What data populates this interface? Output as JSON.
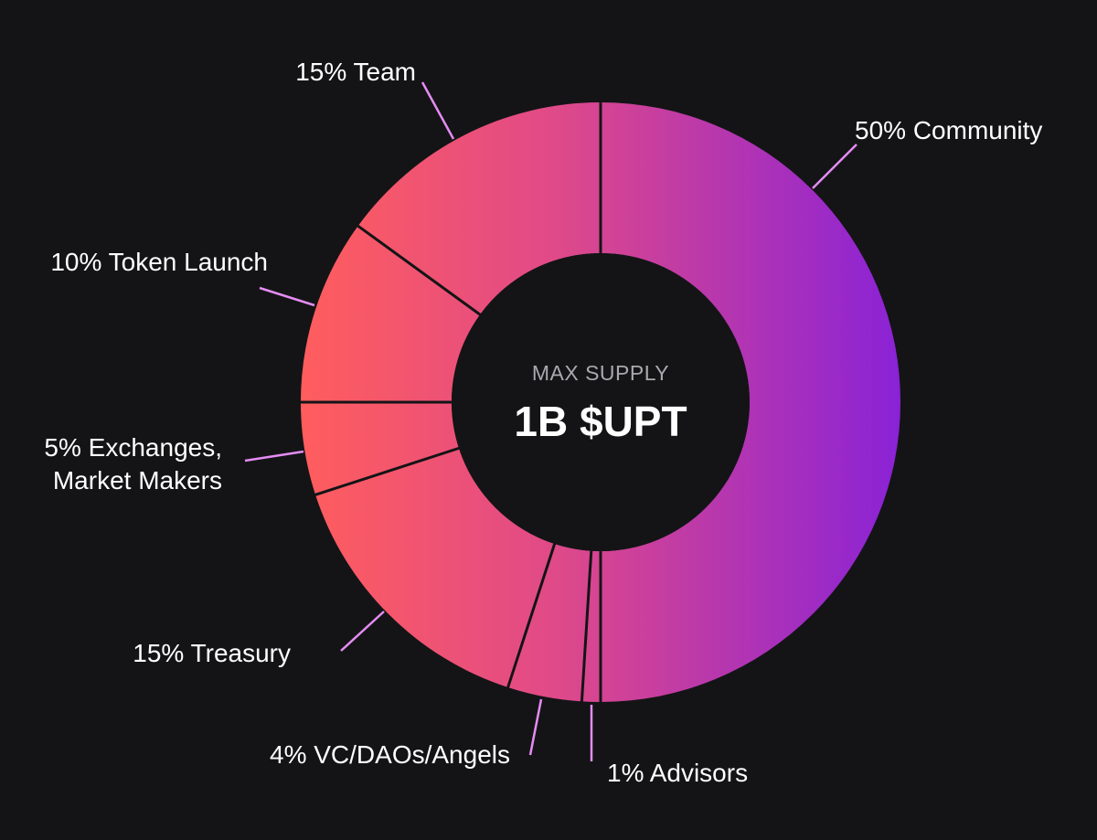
{
  "chart_data": {
    "type": "pie",
    "subtype": "donut",
    "center_caption": "MAX SUPPLY",
    "center_value": "1B $UPT",
    "slices": [
      {
        "name": "Community",
        "value": 50,
        "lines": [
          "50% Community"
        ]
      },
      {
        "name": "Advisors",
        "value": 1,
        "lines": [
          "1% Advisors"
        ]
      },
      {
        "name": "VC/DAOs/Angels",
        "value": 4,
        "lines": [
          "4% VC/DAOs/Angels"
        ]
      },
      {
        "name": "Treasury",
        "value": 15,
        "lines": [
          "15% Treasury"
        ]
      },
      {
        "name": "Exchanges, Market Makers",
        "value": 5,
        "lines": [
          "5% Exchanges,",
          "Market Makers"
        ]
      },
      {
        "name": "Token Launch",
        "value": 10,
        "lines": [
          "10% Token Launch"
        ]
      },
      {
        "name": "Team",
        "value": 15,
        "lines": [
          "15% Team"
        ]
      }
    ],
    "colors": {
      "background": "#141416",
      "gradient_left": "#ff5d5d",
      "gradient_mid": "#e04a88",
      "gradient_right": "#8a22d6",
      "separator": "#141416",
      "leader_line": "#e58cf4"
    }
  }
}
